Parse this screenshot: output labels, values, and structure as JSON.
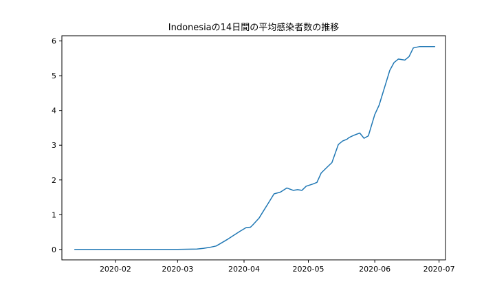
{
  "chart_data": {
    "type": "line",
    "title": "Indonesiaの14日間の平均感染者数の推移",
    "xlabel": "",
    "ylabel": "",
    "x_tick_labels": [
      "2020-02",
      "2020-03",
      "2020-04",
      "2020-05",
      "2020-06",
      "2020-07"
    ],
    "x_ticks": [
      "2020-02-01",
      "2020-03-01",
      "2020-04-01",
      "2020-05-01",
      "2020-06-01",
      "2020-07-01"
    ],
    "y_ticks": [
      0,
      1,
      2,
      3,
      4,
      5,
      6
    ],
    "xlim": [
      "2020-01-07",
      "2020-07-04"
    ],
    "ylim": [
      -0.3,
      6.15
    ],
    "grid": false,
    "line_color": "#1f77b4",
    "series": [
      {
        "x": [
          "2020-01-13",
          "2020-02-01",
          "2020-03-01",
          "2020-03-10",
          "2020-03-13",
          "2020-03-16",
          "2020-03-19",
          "2020-03-21",
          "2020-03-24",
          "2020-03-27",
          "2020-03-30",
          "2020-04-02",
          "2020-04-04",
          "2020-04-05",
          "2020-04-08",
          "2020-04-10",
          "2020-04-12",
          "2020-04-15",
          "2020-04-18",
          "2020-04-21",
          "2020-04-24",
          "2020-04-26",
          "2020-04-28",
          "2020-04-30",
          "2020-05-03",
          "2020-05-05",
          "2020-05-07",
          "2020-05-10",
          "2020-05-12",
          "2020-05-15",
          "2020-05-17",
          "2020-05-19",
          "2020-05-20",
          "2020-05-22",
          "2020-05-25",
          "2020-05-27",
          "2020-05-29",
          "2020-06-01",
          "2020-06-03",
          "2020-06-04",
          "2020-06-06",
          "2020-06-08",
          "2020-06-10",
          "2020-06-12",
          "2020-06-15",
          "2020-06-17",
          "2020-06-19",
          "2020-06-22",
          "2020-06-24",
          "2020-06-26",
          "2020-06-28",
          "2020-06-29"
        ],
        "y": [
          0,
          0,
          0,
          0.01,
          0.03,
          0.06,
          0.1,
          0.17,
          0.28,
          0.4,
          0.52,
          0.63,
          0.64,
          0.7,
          0.9,
          1.1,
          1.3,
          1.6,
          1.65,
          1.77,
          1.7,
          1.72,
          1.7,
          1.82,
          1.88,
          1.93,
          2.2,
          2.38,
          2.5,
          3.02,
          3.12,
          3.17,
          3.22,
          3.28,
          3.35,
          3.2,
          3.27,
          3.88,
          4.15,
          4.35,
          4.75,
          5.15,
          5.38,
          5.48,
          5.45,
          5.55,
          5.8,
          5.84,
          5.84,
          5.84,
          5.84,
          5.84
        ]
      }
    ]
  }
}
